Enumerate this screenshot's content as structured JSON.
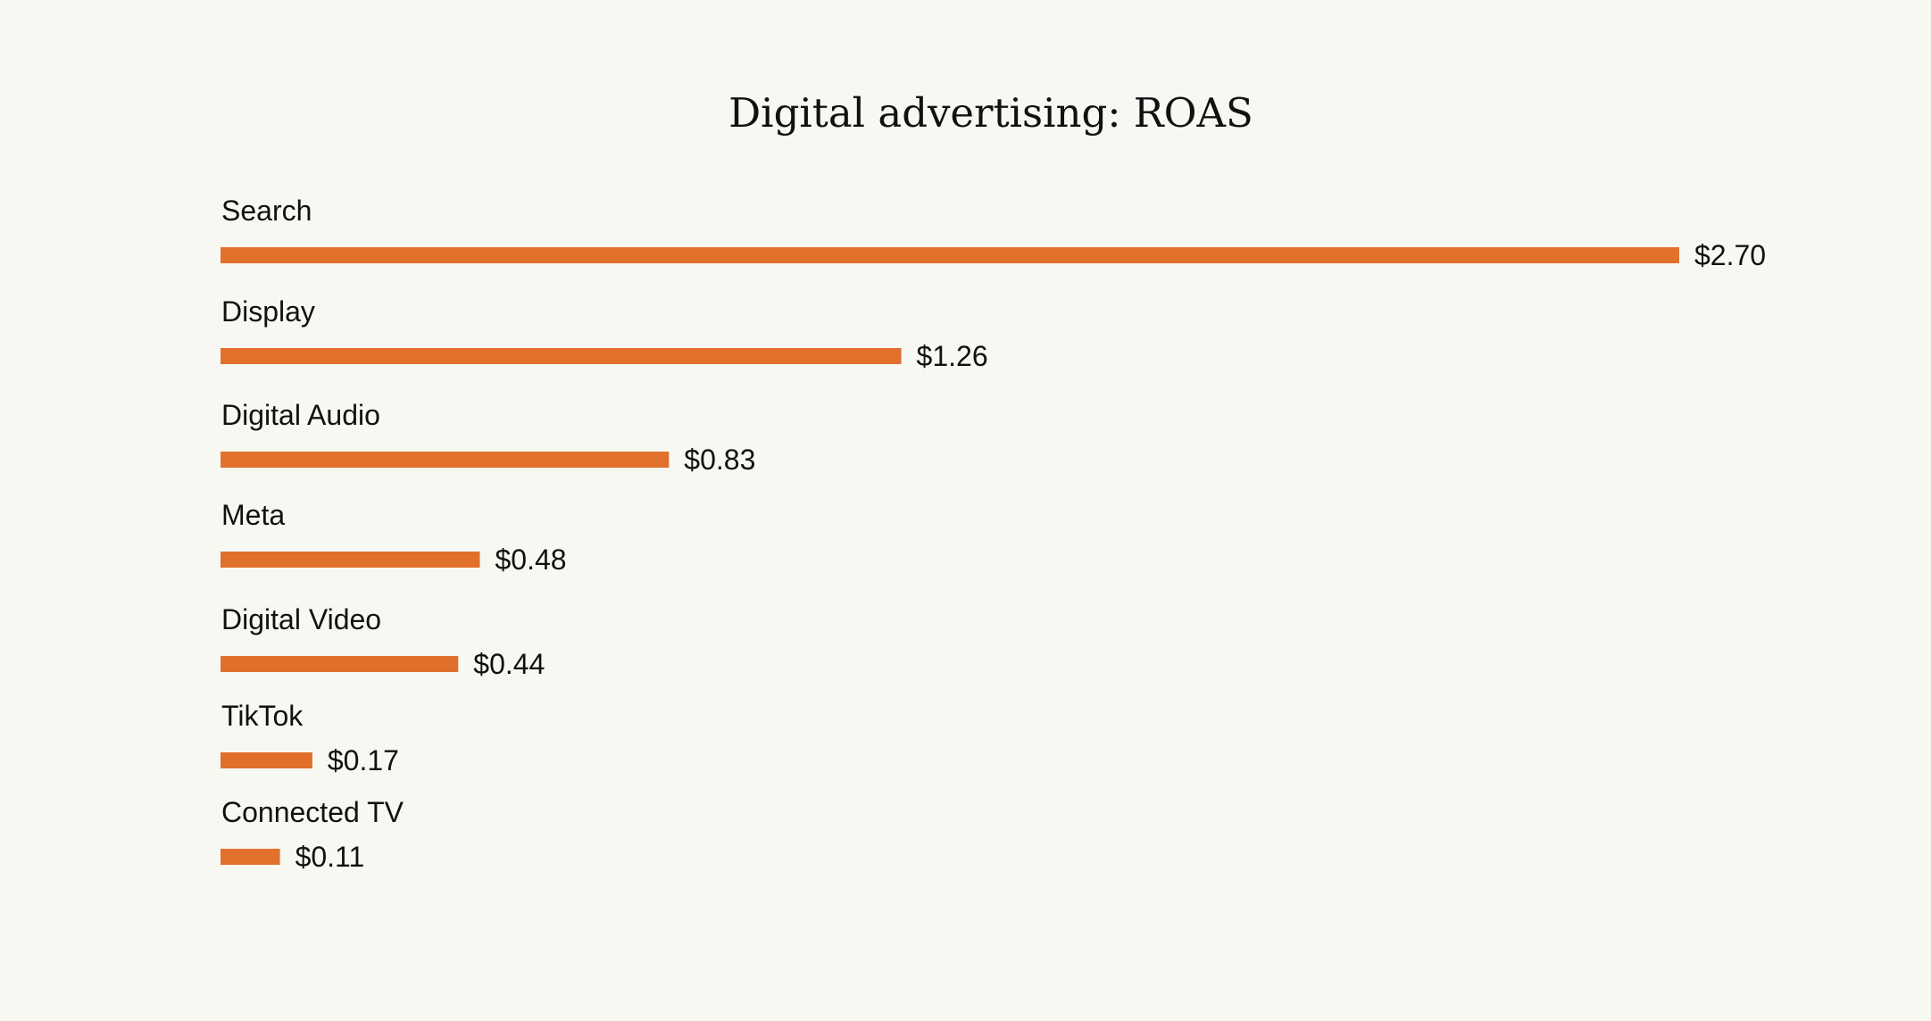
{
  "chart_data": {
    "type": "bar",
    "orientation": "horizontal",
    "title": "Digital advertising: ROAS",
    "xlabel": "",
    "ylabel": "",
    "categories": [
      "Search",
      "Display",
      "Digital Audio",
      "Meta",
      "Digital Video",
      "TikTok",
      "Connected TV"
    ],
    "values": [
      2.7,
      1.26,
      0.83,
      0.48,
      0.44,
      0.17,
      0.11
    ],
    "value_labels": [
      "$2.70",
      "$1.26",
      "$0.83",
      "$0.48",
      "$0.44",
      "$0.17",
      "$0.11"
    ],
    "xlim": [
      0,
      2.7
    ],
    "grid": false,
    "legend": "none",
    "colors": {
      "bar": "#e0702b",
      "background": "#f8f8f3",
      "text": "#111111"
    }
  }
}
